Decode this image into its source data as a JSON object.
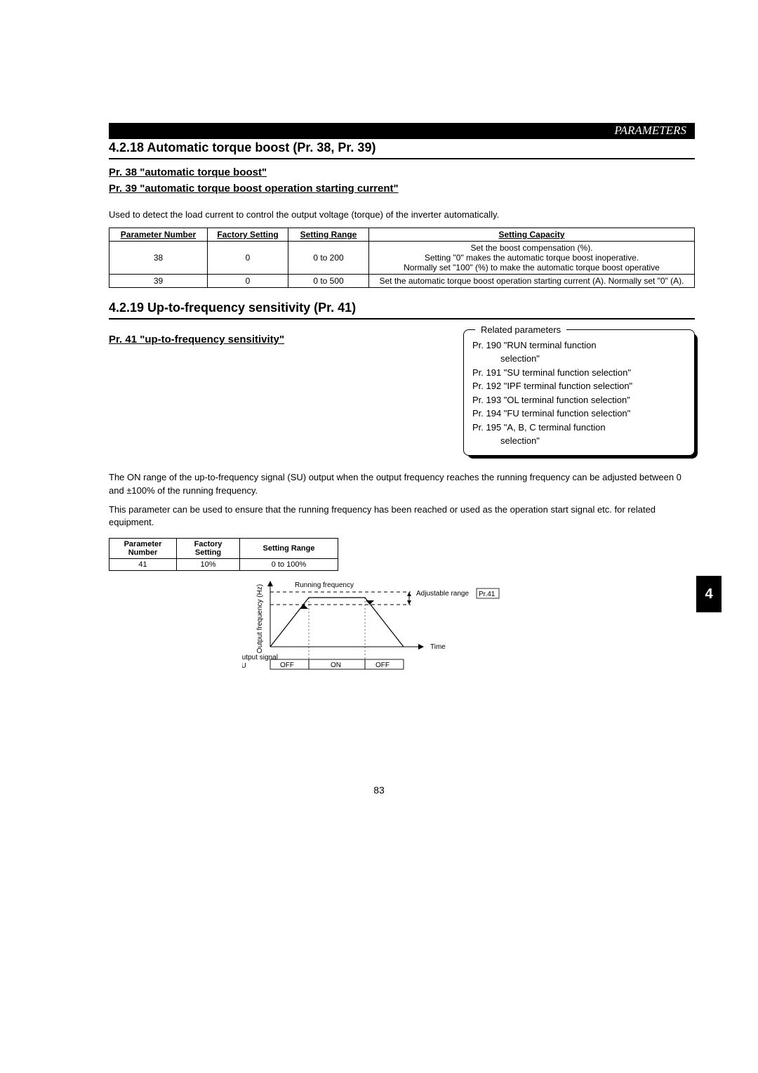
{
  "header": {
    "title": "PARAMETERS"
  },
  "section1": {
    "heading": "4.2.18  Automatic torque boost (Pr. 38, Pr. 39)",
    "sub1": "Pr. 38 \"automatic torque boost\"",
    "sub2": "Pr. 39 \"automatic torque boost operation starting current\"",
    "intro": "Used to detect the load current to control the output voltage (torque) of the inverter automatically.",
    "table": {
      "headers": [
        "Parameter Number",
        "Factory Setting",
        "Setting Range",
        "Setting Capacity"
      ],
      "rows": [
        {
          "num": "38",
          "factory": "0",
          "range": "0 to 200",
          "capacity": "Set the boost compensation (%).\nSetting \"0\" makes the automatic torque boost inoperative.\nNormally set \"100\" (%) to make the automatic torque boost operative"
        },
        {
          "num": "39",
          "factory": "0",
          "range": "0 to 500",
          "capacity": "Set the automatic torque boost operation starting current (A). Normally set \"0\" (A)."
        }
      ]
    }
  },
  "section2": {
    "heading": "4.2.19  Up-to-frequency sensitivity (Pr. 41)",
    "sub": "Pr. 41 \"up-to-frequency sensitivity\"",
    "callout": {
      "legend": "Related parameters",
      "lines": [
        "Pr. 190 \"RUN terminal function selection\"",
        "Pr. 191 \"SU terminal function selection\"",
        "Pr. 192 \"IPF terminal function selection\"",
        "Pr. 193 \"OL terminal function selection\"",
        "Pr. 194 \"FU terminal function selection\"",
        "Pr. 195 \"A, B, C terminal function selection\""
      ]
    },
    "para1": "The ON range of the up-to-frequency signal (SU) output when the output frequency reaches the running frequency can be adjusted between 0 and ±100% of the running frequency.",
    "para2": "This parameter can be used to ensure that the running frequency has been reached or used as the operation start signal etc. for related equipment.",
    "table": {
      "headers": [
        "Parameter Number",
        "Factory Setting",
        "Setting Range"
      ],
      "row": {
        "num": "41",
        "factory": "10%",
        "range": "0 to 100%"
      }
    },
    "diagram": {
      "ylabel": "Output frequency (Hz)",
      "running": "Running frequency",
      "adjustable": "Adjustable range",
      "pr41": "Pr.41",
      "time": "Time",
      "output_signal": "Output signal",
      "su": "SU",
      "off": "OFF",
      "on": "ON"
    }
  },
  "side_tab": "4",
  "page_number": "83",
  "colors": {
    "black": "#000000",
    "white": "#ffffff"
  }
}
